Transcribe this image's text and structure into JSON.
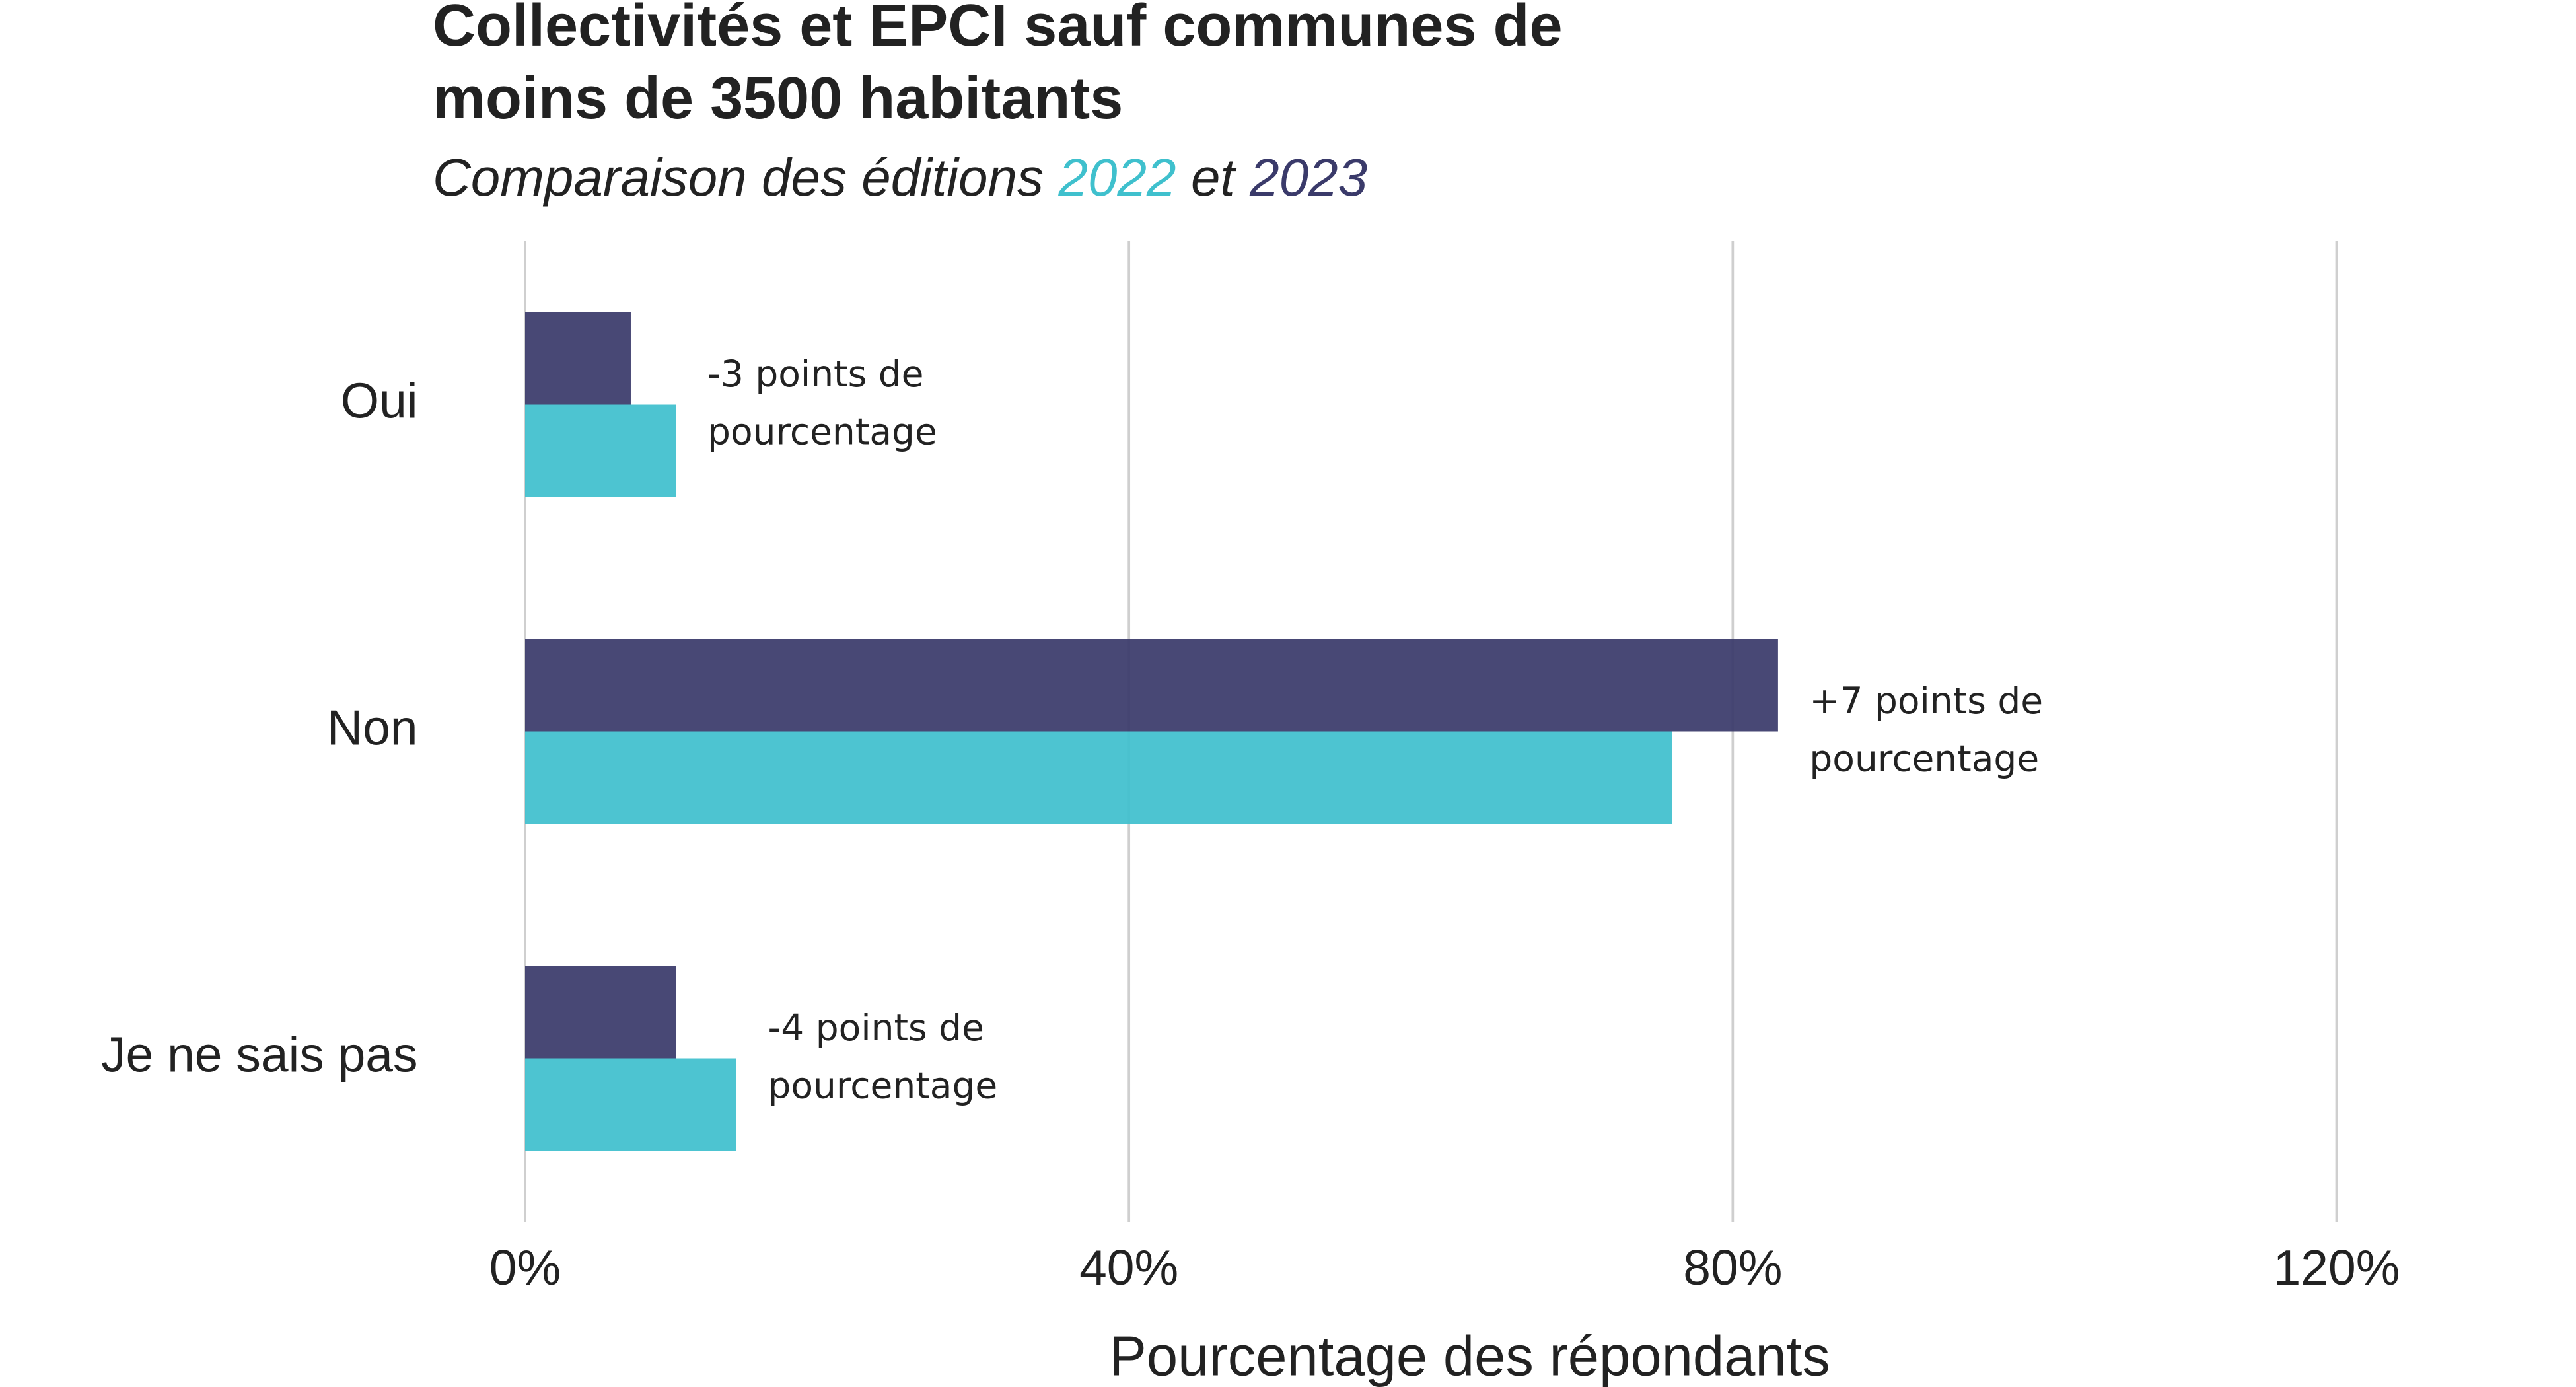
{
  "chart_data": {
    "type": "bar",
    "orientation": "horizontal",
    "title": [
      "Collectivités et EPCI sauf communes de",
      "moins de 3500 habitants"
    ],
    "subtitle": {
      "prefix": "Comparaison des éditions",
      "middle": "et"
    },
    "categories": [
      "Oui",
      "Non",
      "Je ne sais pas"
    ],
    "series": [
      {
        "name": "2022",
        "color": "#3fc0cd",
        "values": [
          10,
          76,
          14
        ]
      },
      {
        "name": "2023",
        "color": "#3a3a6a",
        "values": [
          7,
          83,
          10
        ]
      }
    ],
    "annotations": [
      [
        "-3 points de",
        "pourcentage"
      ],
      [
        "+7 points de",
        "pourcentage"
      ],
      [
        "-4 points de",
        "pourcentage"
      ]
    ],
    "xlabel": "Pourcentage des répondants",
    "xlim": [
      0,
      120
    ],
    "xticks": [
      {
        "value": 0,
        "label": "0%"
      },
      {
        "value": 40,
        "label": "40%"
      },
      {
        "value": 80,
        "label": "80%"
      },
      {
        "value": 120,
        "label": "120%"
      }
    ],
    "grid": true
  }
}
